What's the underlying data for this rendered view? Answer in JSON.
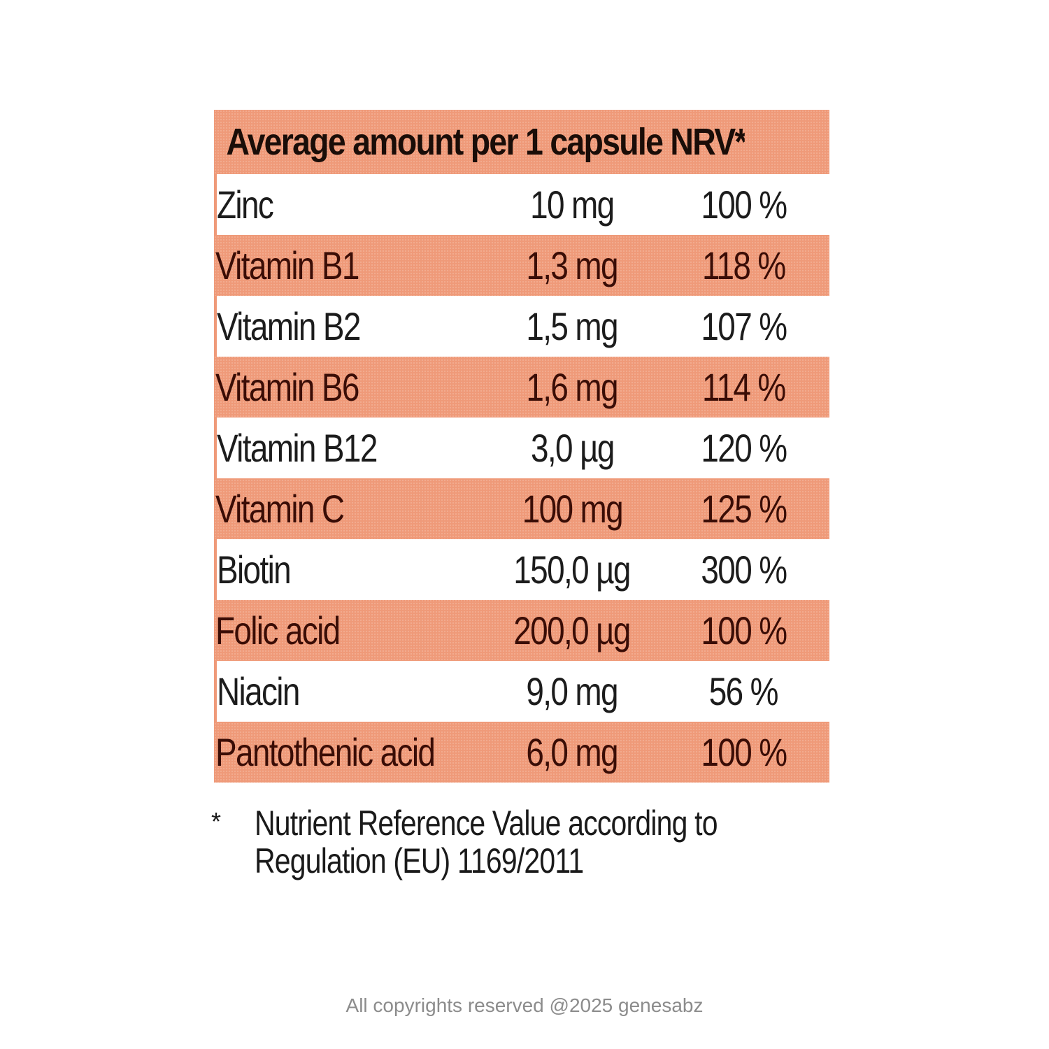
{
  "table": {
    "header": "Average amount per 1 capsule NRV*",
    "rows": [
      {
        "name": "Zinc",
        "amount": "10 mg",
        "nrv": "100 %"
      },
      {
        "name": "Vitamin B1",
        "amount": "1,3 mg",
        "nrv": "118 %"
      },
      {
        "name": "Vitamin B2",
        "amount": "1,5 mg",
        "nrv": "107 %"
      },
      {
        "name": "Vitamin B6",
        "amount": "1,6 mg",
        "nrv": "114 %"
      },
      {
        "name": "Vitamin B12",
        "amount": "3,0 µg",
        "nrv": "120 %"
      },
      {
        "name": "Vitamin C",
        "amount": "100 mg",
        "nrv": "125 %"
      },
      {
        "name": "Biotin",
        "amount": "150,0 µg",
        "nrv": "300 %"
      },
      {
        "name": "Folic acid",
        "amount": "200,0 µg",
        "nrv": "100 %"
      },
      {
        "name": "Niacin",
        "amount": "9,0 mg",
        "nrv": "56 %"
      },
      {
        "name": "Pantothenic acid",
        "amount": "6,0 mg",
        "nrv": "100 %"
      }
    ]
  },
  "footnote": {
    "marker": "*",
    "line1": "Nutrient Reference Value according to",
    "line2": "Regulation (EU) 1169/2011"
  },
  "copyright": "All copyrights reserved @2025 genesabz",
  "colors": {
    "band": "#ef9a79",
    "band_text": "#3a0d06",
    "plain_text": "#1c1c1c"
  }
}
